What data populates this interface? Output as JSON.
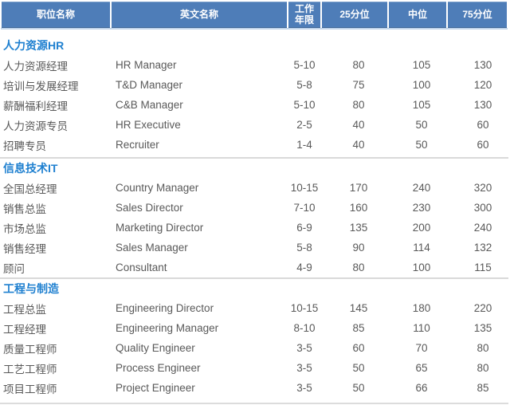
{
  "colors": {
    "page_bg": "#FFFFFF",
    "header_bg": "#4E7DB8",
    "header_text": "#FFFFFF",
    "header_edge": "#BFD3E9",
    "section_title": "#1F80D0",
    "row_text": "#595959",
    "divider": "#D9D9D9"
  },
  "table": {
    "headers": [
      "职位名称",
      "英文名称",
      "工作年限",
      "25分位",
      "中位",
      "75分位"
    ],
    "sections": [
      {
        "title": "人力资源HR",
        "rows": [
          {
            "position": "人力资源经理",
            "english": "HR Manager",
            "years": "5-10",
            "p25": "80",
            "p50": "105",
            "p75": "130"
          },
          {
            "position": "培训与发展经理",
            "english": "T&D Manager",
            "years": "5-8",
            "p25": "75",
            "p50": "100",
            "p75": "120"
          },
          {
            "position": "薪酬福利经理",
            "english": "C&B Manager",
            "years": "5-10",
            "p25": "80",
            "p50": "105",
            "p75": "130"
          },
          {
            "position": "人力资源专员",
            "english": "HR Executive",
            "years": "2-5",
            "p25": "40",
            "p50": "50",
            "p75": "60"
          },
          {
            "position": "招聘专员",
            "english": "Recruiter",
            "years": "1-4",
            "p25": "40",
            "p50": "50",
            "p75": "60"
          }
        ]
      },
      {
        "title": "信息技术IT",
        "rows": [
          {
            "position": "全国总经理",
            "english": "Country Manager",
            "years": "10-15",
            "p25": "170",
            "p50": "240",
            "p75": "320"
          },
          {
            "position": "销售总监",
            "english": "Sales Director",
            "years": "7-10",
            "p25": "160",
            "p50": "230",
            "p75": "300"
          },
          {
            "position": "市场总监",
            "english": "Marketing Director",
            "years": "6-9",
            "p25": "135",
            "p50": "200",
            "p75": "240"
          },
          {
            "position": "销售经理",
            "english": "Sales Manager",
            "years": "5-8",
            "p25": "90",
            "p50": "114",
            "p75": "132"
          },
          {
            "position": "顾问",
            "english": "Consultant",
            "years": "4-9",
            "p25": "80",
            "p50": "100",
            "p75": "115"
          }
        ]
      },
      {
        "title": "工程与制造",
        "rows": [
          {
            "position": "工程总监",
            "english": "Engineering Director",
            "years": "10-15",
            "p25": "145",
            "p50": "180",
            "p75": "220"
          },
          {
            "position": "工程经理",
            "english": "Engineering Manager",
            "years": "8-10",
            "p25": "85",
            "p50": "110",
            "p75": "135"
          },
          {
            "position": "质量工程师",
            "english": "Quality Engineer",
            "years": "3-5",
            "p25": "60",
            "p50": "70",
            "p75": "80"
          },
          {
            "position": "工艺工程师",
            "english": "Process Engineer",
            "years": "3-5",
            "p25": "50",
            "p50": "65",
            "p75": "80"
          },
          {
            "position": "项目工程师",
            "english": "Project Engineer",
            "years": "3-5",
            "p25": "50",
            "p50": "66",
            "p75": "85"
          }
        ]
      }
    ]
  },
  "chart_data": {
    "type": "table",
    "columns": [
      "职位名称",
      "英文名称",
      "工作年限",
      "25分位",
      "中位",
      "75分位"
    ],
    "groups": [
      {
        "name": "人力资源HR",
        "rows": [
          [
            "人力资源经理",
            "HR Manager",
            "5-10",
            80,
            105,
            130
          ],
          [
            "培训与发展经理",
            "T&D Manager",
            "5-8",
            75,
            100,
            120
          ],
          [
            "薪酬福利经理",
            "C&B Manager",
            "5-10",
            80,
            105,
            130
          ],
          [
            "人力资源专员",
            "HR Executive",
            "2-5",
            40,
            50,
            60
          ],
          [
            "招聘专员",
            "Recruiter",
            "1-4",
            40,
            50,
            60
          ]
        ]
      },
      {
        "name": "信息技术IT",
        "rows": [
          [
            "全国总经理",
            "Country Manager",
            "10-15",
            170,
            240,
            320
          ],
          [
            "销售总监",
            "Sales Director",
            "7-10",
            160,
            230,
            300
          ],
          [
            "市场总监",
            "Marketing Director",
            "6-9",
            135,
            200,
            240
          ],
          [
            "销售经理",
            "Sales Manager",
            "5-8",
            90,
            114,
            132
          ],
          [
            "顾问",
            "Consultant",
            "4-9",
            80,
            100,
            115
          ]
        ]
      },
      {
        "name": "工程与制造",
        "rows": [
          [
            "工程总监",
            "Engineering Director",
            "10-15",
            145,
            180,
            220
          ],
          [
            "工程经理",
            "Engineering Manager",
            "8-10",
            85,
            110,
            135
          ],
          [
            "质量工程师",
            "Quality Engineer",
            "3-5",
            60,
            70,
            80
          ],
          [
            "工艺工程师",
            "Process Engineer",
            "3-5",
            50,
            65,
            80
          ],
          [
            "项目工程师",
            "Project Engineer",
            "3-5",
            50,
            66,
            85
          ]
        ]
      }
    ]
  }
}
